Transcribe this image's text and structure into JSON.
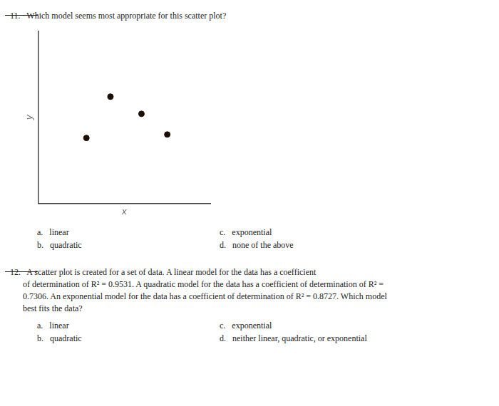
{
  "chart_data": {
    "type": "scatter",
    "x": [
      0.28,
      0.42,
      0.6,
      0.75
    ],
    "values": [
      0.38,
      0.62,
      0.52,
      0.4
    ],
    "color": "#1a1008",
    "xlabel": "x",
    "ylabel": "y",
    "xlim": [
      0,
      1
    ],
    "ylim": [
      0,
      1
    ],
    "tick_labels": false,
    "grid": false,
    "annotations": [
      {
        "question": [
          "11.   Which model seems most appropriate for this scatter plot?"
        ],
        "answers": [
          "a.   linear",
          "b.   quadratic",
          "c.   exponential",
          "d.   none of the above"
        ]
      },
      {
        "question": [
          "12.   A scatter plot is created for a set of data. A linear model for the data has a coefficient",
          "      of determination of R² = 0.9531. A quadratic model for the data has a coefficient of determination of R² =",
          "      0.7306. An exponential model for the data has a coefficient of determination of R² = 0.8727. Which model",
          "      best fits the data?"
        ],
        "answers": [
          "a.   linear",
          "b.   quadratic",
          "c.   exponential",
          "d.   neither linear, quadratic, or exponential"
        ]
      }
    ]
  }
}
